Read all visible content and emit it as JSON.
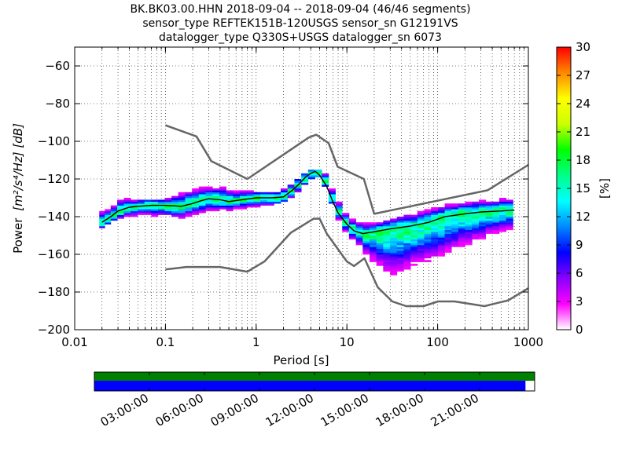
{
  "chart_data": {
    "type": "heatmap",
    "title_lines": [
      "BK.BK03.00.HHN   2018-09-04 -- 2018-09-04  (46/46 segments)",
      "sensor_type REFTEK151B-120USGS sensor_sn G12191VS",
      "datalogger_type Q330S+USGS datalogger_sn 6073"
    ],
    "xlabel": "Period [s]",
    "ylabel_prefix": "Power",
    "ylabel_units": "[m²/s⁴/Hz] [dB]",
    "x_scale": "log",
    "xlim": [
      0.01,
      1000
    ],
    "ylim": [
      -200,
      -50
    ],
    "x_ticks": [
      0.01,
      0.1,
      1,
      10,
      100,
      1000
    ],
    "x_tick_labels": [
      "0.01",
      "0.1",
      "1",
      "10",
      "100",
      "1000"
    ],
    "y_ticks": [
      -200,
      -180,
      -160,
      -140,
      -120,
      -100,
      -80,
      -60
    ],
    "y_tick_labels": [
      "−200",
      "−180",
      "−160",
      "−140",
      "−120",
      "−100",
      "−80",
      "−60"
    ],
    "grid": "dotted",
    "colorbar": {
      "label": "[%]",
      "range": [
        0,
        30
      ],
      "ticks": [
        0,
        3,
        6,
        9,
        12,
        15,
        18,
        21,
        24,
        27,
        30
      ],
      "colors": [
        "#ffffff",
        "#ff00ff",
        "#8800ff",
        "#0000ff",
        "#0088ff",
        "#00ffff",
        "#00ff88",
        "#00ff00",
        "#ccff00",
        "#ffff00",
        "#ff8800",
        "#ff0000"
      ]
    },
    "nhnm": {
      "name": "New High Noise Model",
      "period": [
        0.1,
        0.22,
        0.32,
        0.8,
        3.8,
        4.6,
        6.3,
        7.9,
        15.4,
        20,
        354.8,
        1000
      ],
      "power": [
        -91.5,
        -97.4,
        -110.5,
        -120.0,
        -98.0,
        -96.5,
        -101.0,
        -113.5,
        -120.0,
        -138.5,
        -126.0,
        -112.5
      ]
    },
    "nlnm": {
      "name": "New Low Noise Model",
      "period": [
        0.1,
        0.17,
        0.4,
        0.8,
        1.24,
        2.4,
        4.3,
        5.0,
        6.0,
        10.0,
        12.0,
        15.6,
        21.9,
        31.6,
        45,
        70,
        101,
        154,
        328,
        600,
        1000
      ],
      "power": [
        -168.0,
        -166.7,
        -166.7,
        -169.2,
        -163.7,
        -148.6,
        -141.1,
        -141.1,
        -149.0,
        -163.8,
        -166.2,
        -162.1,
        -177.5,
        -185.0,
        -187.5,
        -187.5,
        -185.0,
        -185.0,
        -187.5,
        -184.4,
        -178.0
      ]
    },
    "mode_curve": {
      "name": "mode",
      "period": [
        0.02,
        0.025,
        0.03,
        0.04,
        0.05,
        0.07,
        0.1,
        0.15,
        0.2,
        0.25,
        0.3,
        0.4,
        0.5,
        0.7,
        1.0,
        1.5,
        2.0,
        2.5,
        3.0,
        3.5,
        4.0,
        4.5,
        5.0,
        6.0,
        7.0,
        8.0,
        10,
        12,
        15,
        20,
        30,
        50,
        80,
        120,
        200,
        300,
        500,
        700
      ],
      "power": [
        -143,
        -140,
        -137,
        -135,
        -134.5,
        -134,
        -134,
        -134.5,
        -133,
        -131.5,
        -130.5,
        -131,
        -132,
        -131,
        -130,
        -130,
        -129.5,
        -126,
        -122.5,
        -119,
        -117,
        -116,
        -118,
        -124,
        -132,
        -138,
        -144,
        -147.5,
        -149,
        -148,
        -146.5,
        -145,
        -143,
        -140,
        -138.5,
        -137.5,
        -137,
        -136.5
      ]
    },
    "pdf_columns": [
      {
        "period": 0.02,
        "min": -146,
        "max": -137,
        "mode": -143
      },
      {
        "period": 0.023,
        "min": -144,
        "max": -136,
        "mode": -141
      },
      {
        "period": 0.027,
        "min": -142,
        "max": -134,
        "mode": -139
      },
      {
        "period": 0.032,
        "min": -141,
        "max": -130,
        "mode": -137
      },
      {
        "period": 0.038,
        "min": -140,
        "max": -130,
        "mode": -135.5
      },
      {
        "period": 0.045,
        "min": -140,
        "max": -131,
        "mode": -135
      },
      {
        "period": 0.054,
        "min": -139,
        "max": -131,
        "mode": -134.5
      },
      {
        "period": 0.064,
        "min": -139,
        "max": -131,
        "mode": -134
      },
      {
        "period": 0.076,
        "min": -140,
        "max": -131,
        "mode": -134
      },
      {
        "period": 0.09,
        "min": -140,
        "max": -131,
        "mode": -134
      },
      {
        "period": 0.107,
        "min": -140,
        "max": -130,
        "mode": -134
      },
      {
        "period": 0.127,
        "min": -141,
        "max": -128,
        "mode": -134.5
      },
      {
        "period": 0.151,
        "min": -141,
        "max": -127,
        "mode": -134.5
      },
      {
        "period": 0.18,
        "min": -140,
        "max": -126,
        "mode": -133.5
      },
      {
        "period": 0.214,
        "min": -139,
        "max": -125,
        "mode": -132.5
      },
      {
        "period": 0.254,
        "min": -138,
        "max": -124,
        "mode": -131.5
      },
      {
        "period": 0.302,
        "min": -137,
        "max": -124,
        "mode": -130.5
      },
      {
        "period": 0.36,
        "min": -137,
        "max": -124,
        "mode": -130.5
      },
      {
        "period": 0.428,
        "min": -137,
        "max": -124,
        "mode": -131
      },
      {
        "period": 0.509,
        "min": -137,
        "max": -125,
        "mode": -132
      },
      {
        "period": 0.605,
        "min": -136,
        "max": -126,
        "mode": -131.5
      },
      {
        "period": 0.72,
        "min": -136,
        "max": -126,
        "mode": -131
      },
      {
        "period": 0.856,
        "min": -135,
        "max": -126,
        "mode": -130.5
      },
      {
        "period": 1.02,
        "min": -135,
        "max": -127,
        "mode": -130
      },
      {
        "period": 1.21,
        "min": -134,
        "max": -127,
        "mode": -130
      },
      {
        "period": 1.44,
        "min": -134,
        "max": -127,
        "mode": -130
      },
      {
        "period": 1.71,
        "min": -133,
        "max": -127,
        "mode": -130
      },
      {
        "period": 2.03,
        "min": -132,
        "max": -125,
        "mode": -129
      },
      {
        "period": 2.42,
        "min": -130,
        "max": -123,
        "mode": -126.5
      },
      {
        "period": 2.88,
        "min": -127,
        "max": -120,
        "mode": -123
      },
      {
        "period": 3.42,
        "min": -123,
        "max": -117,
        "mode": -120
      },
      {
        "period": 4.07,
        "min": -120,
        "max": -115,
        "mode": -117
      },
      {
        "period": 4.84,
        "min": -119,
        "max": -115,
        "mode": -116.5
      },
      {
        "period": 5.76,
        "min": -124,
        "max": -117,
        "mode": -121
      },
      {
        "period": 6.85,
        "min": -133,
        "max": -125,
        "mode": -130
      },
      {
        "period": 8.14,
        "min": -142,
        "max": -132,
        "mode": -137
      },
      {
        "period": 9.68,
        "min": -148,
        "max": -138,
        "mode": -143
      },
      {
        "period": 11.5,
        "min": -152,
        "max": -141,
        "mode": -146.5
      },
      {
        "period": 13.7,
        "min": -155,
        "max": -142,
        "mode": -148.5
      },
      {
        "period": 16.3,
        "min": -160,
        "max": -143,
        "mode": -149
      },
      {
        "period": 19.4,
        "min": -164,
        "max": -143,
        "mode": -148.5
      },
      {
        "period": 23.0,
        "min": -167,
        "max": -142,
        "mode": -148
      },
      {
        "period": 27.4,
        "min": -170,
        "max": -141,
        "mode": -147
      },
      {
        "period": 32.6,
        "min": -171,
        "max": -140,
        "mode": -146.5
      },
      {
        "period": 38.7,
        "min": -170,
        "max": -139,
        "mode": -146
      },
      {
        "period": 46.1,
        "min": -168,
        "max": -138,
        "mode": -145.5
      },
      {
        "period": 54.8,
        "min": -166,
        "max": -138,
        "mode": -145
      },
      {
        "period": 65.2,
        "min": -165,
        "max": -137,
        "mode": -144
      },
      {
        "period": 77.5,
        "min": -164,
        "max": -136,
        "mode": -143
      },
      {
        "period": 92.2,
        "min": -163,
        "max": -135,
        "mode": -142
      },
      {
        "period": 110,
        "min": -161,
        "max": -134,
        "mode": -140.5
      },
      {
        "period": 130,
        "min": -159,
        "max": -133,
        "mode": -139.5
      },
      {
        "period": 155,
        "min": -158,
        "max": -133,
        "mode": -138.5
      },
      {
        "period": 184,
        "min": -156,
        "max": -132,
        "mode": -138
      },
      {
        "period": 219,
        "min": -155,
        "max": -132,
        "mode": -137.5
      },
      {
        "period": 261,
        "min": -153,
        "max": -131,
        "mode": -137.5
      },
      {
        "period": 310,
        "min": -152,
        "max": -131,
        "mode": -137
      },
      {
        "period": 369,
        "min": -150,
        "max": -131,
        "mode": -137
      },
      {
        "period": 438,
        "min": -149,
        "max": -131,
        "mode": -137
      },
      {
        "period": 521,
        "min": -148,
        "max": -130,
        "mode": -136.5
      },
      {
        "period": 620,
        "min": -147,
        "max": -130,
        "mode": -136.5
      }
    ],
    "time_axis": {
      "labels": [
        "03:00:00",
        "06:00:00",
        "09:00:00",
        "12:00:00",
        "15:00:00",
        "18:00:00",
        "21:00:00"
      ],
      "hours": [
        3,
        6,
        9,
        12,
        15,
        18,
        21
      ],
      "range_hours": [
        0,
        24
      ],
      "data_coverage_end_hours": 23.5,
      "gap_coverage_end_hours": 24,
      "colors": {
        "gaps": "#008000",
        "data": "#0000ff"
      }
    }
  }
}
